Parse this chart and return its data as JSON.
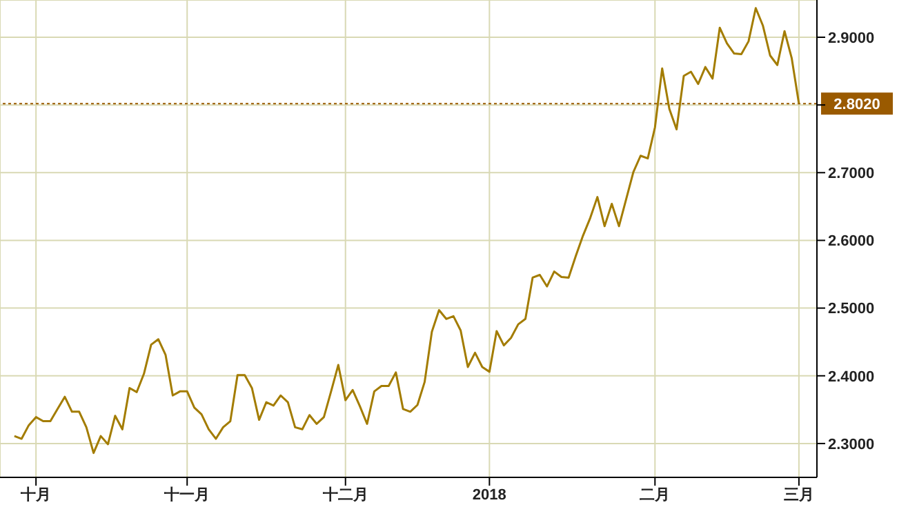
{
  "chart_data": {
    "type": "line",
    "categories": [
      null,
      null,
      null,
      "十月",
      null,
      null,
      null,
      null,
      null,
      null,
      null,
      null,
      null,
      null,
      null,
      null,
      null,
      null,
      null,
      null,
      null,
      null,
      null,
      null,
      "十一月",
      null,
      null,
      null,
      null,
      null,
      null,
      null,
      null,
      null,
      null,
      null,
      null,
      null,
      null,
      null,
      null,
      null,
      null,
      null,
      null,
      null,
      "十二月",
      null,
      null,
      null,
      null,
      null,
      null,
      null,
      null,
      null,
      null,
      null,
      null,
      null,
      null,
      null,
      null,
      null,
      null,
      null,
      "2018",
      null,
      null,
      null,
      null,
      null,
      null,
      null,
      null,
      null,
      null,
      null,
      null,
      null,
      null,
      null,
      null,
      null,
      null,
      null,
      null,
      null,
      null,
      "二月",
      null,
      null,
      null,
      null,
      null,
      null,
      null,
      null,
      null,
      null,
      null,
      null,
      null,
      null,
      null,
      null,
      null,
      null,
      null,
      "三月"
    ],
    "series": [
      {
        "color": "#a37c00",
        "values": [
          2.311,
          2.307,
          2.327,
          2.339,
          2.333,
          2.333,
          2.351,
          2.369,
          2.347,
          2.347,
          2.324,
          2.286,
          2.311,
          2.299,
          2.341,
          2.321,
          2.382,
          2.376,
          2.403,
          2.446,
          2.454,
          2.431,
          2.371,
          2.377,
          2.377,
          2.353,
          2.343,
          2.321,
          2.307,
          2.324,
          2.333,
          2.401,
          2.401,
          2.382,
          2.335,
          2.361,
          2.356,
          2.371,
          2.361,
          2.324,
          2.321,
          2.342,
          2.329,
          2.339,
          2.377,
          2.416,
          2.364,
          2.379,
          2.355,
          2.329,
          2.377,
          2.385,
          2.385,
          2.405,
          2.351,
          2.347,
          2.357,
          2.391,
          2.465,
          2.497,
          2.484,
          2.488,
          2.467,
          2.413,
          2.434,
          2.413,
          2.406,
          2.466,
          2.445,
          2.456,
          2.476,
          2.484,
          2.545,
          2.549,
          2.532,
          2.554,
          2.546,
          2.545,
          2.577,
          2.607,
          2.633,
          2.664,
          2.621,
          2.654,
          2.621,
          2.661,
          2.701,
          2.725,
          2.721,
          2.767,
          2.854,
          2.794,
          2.764,
          2.843,
          2.849,
          2.831,
          2.856,
          2.839,
          2.914,
          2.891,
          2.876,
          2.875,
          2.894,
          2.943,
          2.917,
          2.873,
          2.859,
          2.909,
          2.869,
          2.802
        ]
      }
    ],
    "ylim": [
      2.25,
      2.955
    ],
    "yticks": [
      {
        "value": 2.3,
        "label": "2.3000"
      },
      {
        "value": 2.4,
        "label": "2.4000"
      },
      {
        "value": 2.5,
        "label": "2.5000"
      },
      {
        "value": 2.6,
        "label": "2.6000"
      },
      {
        "value": 2.7,
        "label": "2.7000"
      },
      {
        "value": 2.8,
        "label": null
      },
      {
        "value": 2.9,
        "label": "2.9000"
      }
    ],
    "ref_lines": [
      {
        "axis": "y",
        "value": 2.802,
        "label": "2.8020",
        "color": "#9a5a00",
        "line_style": "dotted"
      }
    ],
    "grid": true,
    "legend": false,
    "marker": "none",
    "line_style": "solid"
  }
}
